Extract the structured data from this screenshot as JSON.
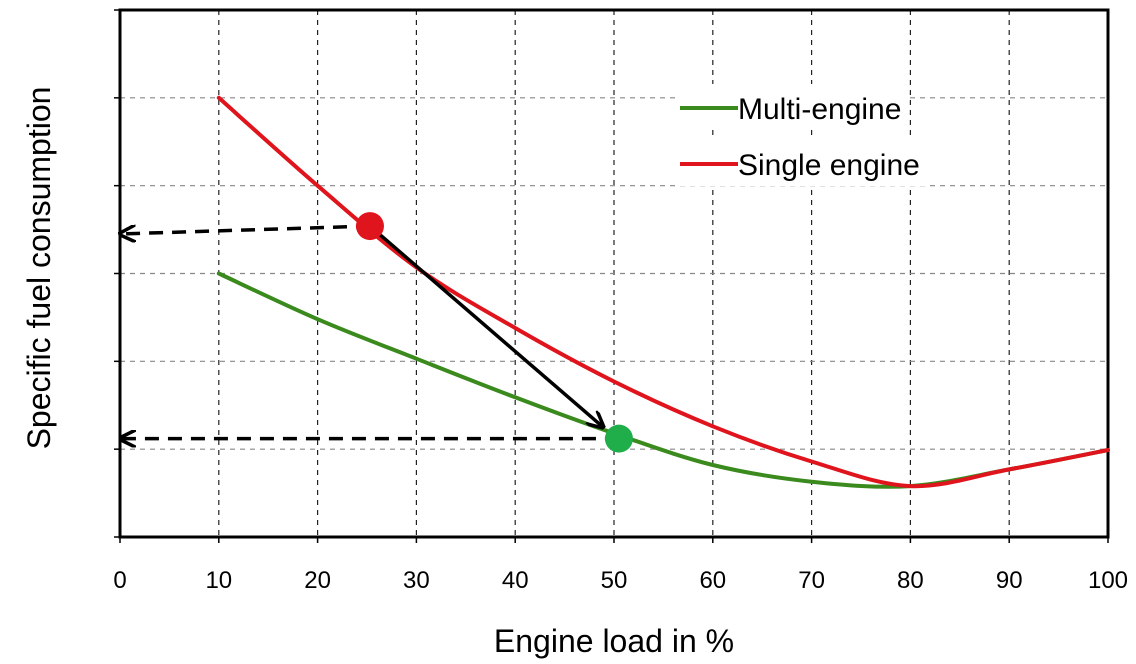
{
  "chart_data": {
    "type": "line",
    "title": "",
    "xlabel": "Engine load in %",
    "ylabel": "Specific fuel consumption",
    "xlim": [
      0,
      100
    ],
    "ylim": [
      0,
      6
    ],
    "x_ticks": [
      "0",
      "10",
      "20",
      "30",
      "40",
      "50",
      "60",
      "70",
      "80",
      "90",
      "100"
    ],
    "y_ticks_labeled": false,
    "grid": true,
    "legend_position": "top-right",
    "series": [
      {
        "name": "Multi-engine",
        "color": "#3a8a1e",
        "x": [
          10,
          20,
          30,
          40,
          50,
          60,
          70,
          80,
          90,
          100
        ],
        "y": [
          3.0,
          2.48,
          2.03,
          1.59,
          1.18,
          0.82,
          0.63,
          0.58,
          0.77,
          0.99
        ]
      },
      {
        "name": "Single engine",
        "color": "#e0141c",
        "x": [
          10,
          20,
          30,
          40,
          50,
          60,
          70,
          80,
          90,
          100
        ],
        "y": [
          5.0,
          4.0,
          3.07,
          2.38,
          1.77,
          1.26,
          0.86,
          0.58,
          0.77,
          0.99
        ]
      }
    ],
    "annotations": [
      {
        "type": "marker",
        "color": "#e0141c",
        "x": 25.3,
        "y": 3.54
      },
      {
        "type": "marker",
        "color": "#1fae4a",
        "x": 50.5,
        "y": 1.12
      },
      {
        "type": "dashed-arrow",
        "from": [
          25.3,
          3.54
        ],
        "to": [
          0,
          3.45
        ]
      },
      {
        "type": "dashed-arrow",
        "from": [
          50.5,
          1.12
        ],
        "to": [
          0,
          1.12
        ]
      },
      {
        "type": "solid-arrow",
        "from": [
          25.3,
          3.54
        ],
        "to": [
          48.9,
          1.25
        ]
      }
    ]
  }
}
